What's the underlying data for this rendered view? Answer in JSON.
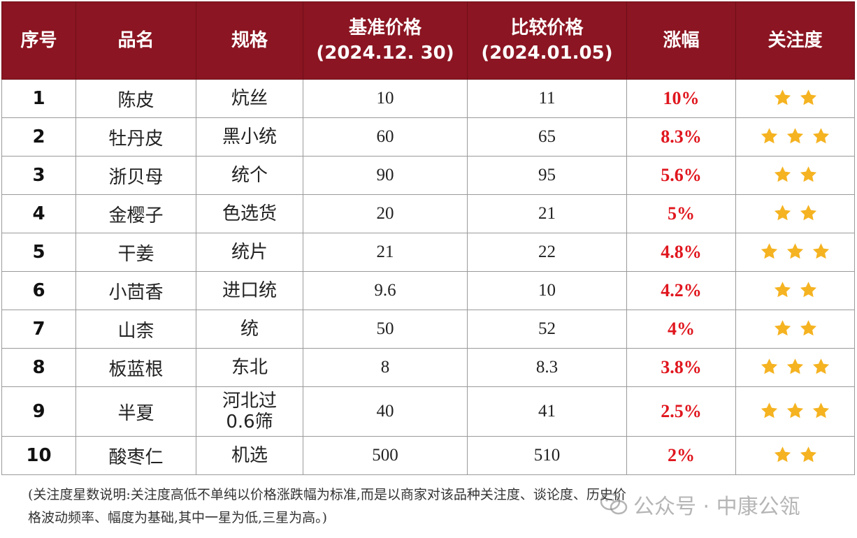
{
  "table": {
    "headers": {
      "index": "序号",
      "name": "品名",
      "spec": "规格",
      "base_price_line1": "基准价格",
      "base_price_line2": "(2024.12. 30)",
      "compare_price_line1": "比较价格",
      "compare_price_line2": "(2024.01.05)",
      "change": "涨幅",
      "attention": "关注度"
    },
    "rows": [
      {
        "index": "1",
        "name": "陈皮",
        "spec": [
          "炕丝"
        ],
        "base": "10",
        "compare": "11",
        "change": "10%",
        "stars": 2
      },
      {
        "index": "2",
        "name": "牡丹皮",
        "spec": [
          "黑小统"
        ],
        "base": "60",
        "compare": "65",
        "change": "8.3%",
        "stars": 3
      },
      {
        "index": "3",
        "name": "浙贝母",
        "spec": [
          "统个"
        ],
        "base": "90",
        "compare": "95",
        "change": "5.6%",
        "stars": 2
      },
      {
        "index": "4",
        "name": "金樱子",
        "spec": [
          "色选货"
        ],
        "base": "20",
        "compare": "21",
        "change": "5%",
        "stars": 2
      },
      {
        "index": "5",
        "name": "干姜",
        "spec": [
          "统片"
        ],
        "base": "21",
        "compare": "22",
        "change": "4.8%",
        "stars": 3
      },
      {
        "index": "6",
        "name": "小茴香",
        "spec": [
          "进口统"
        ],
        "base": "9.6",
        "compare": "10",
        "change": "4.2%",
        "stars": 2
      },
      {
        "index": "7",
        "name": "山柰",
        "spec": [
          "统"
        ],
        "base": "50",
        "compare": "52",
        "change": "4%",
        "stars": 2
      },
      {
        "index": "8",
        "name": "板蓝根",
        "spec": [
          "东北"
        ],
        "base": "8",
        "compare": "8.3",
        "change": "3.8%",
        "stars": 3
      },
      {
        "index": "9",
        "name": "半夏",
        "spec": [
          "河北过",
          "0.6筛"
        ],
        "base": "40",
        "compare": "41",
        "change": "2.5%",
        "stars": 3
      },
      {
        "index": "10",
        "name": "酸枣仁",
        "spec": [
          "机选"
        ],
        "base": "500",
        "compare": "510",
        "change": "2%",
        "stars": 2
      }
    ]
  },
  "footnote": {
    "line1": "(关注度星数说明:关注度高低不单纯以价格涨跌幅为标准,而是以商家对该品种关注度、谈论度、历史价",
    "line2": "格波动频率、幅度为基础,其中一星为低,三星为高。)"
  },
  "watermark": {
    "text": "公众号 · 中康公瓴",
    "icon": "wechat-icon"
  },
  "colors": {
    "header_bg": "#8b1522",
    "header_text": "#ffffff",
    "change_text": "#e0161e",
    "star": "#f5b321"
  }
}
